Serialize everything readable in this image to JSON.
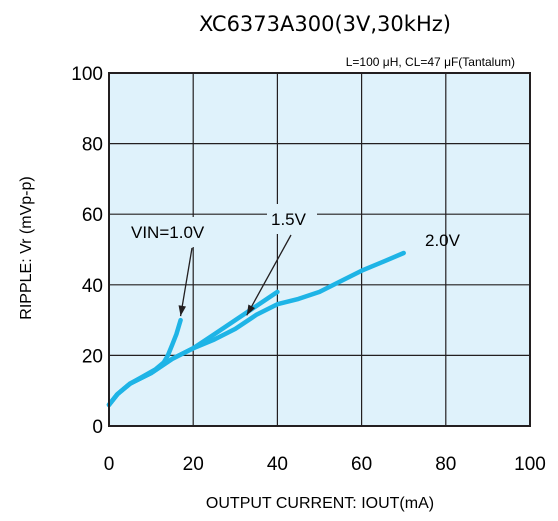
{
  "chart_data": {
    "type": "line",
    "title": "XC6373A300(3V,30kHz)",
    "conditions": "L=100 μH, CL=47 μF(Tantalum)",
    "xlabel": "OUTPUT CURRENT: IOUT(mA)",
    "ylabel": "RIPPLE: Vr (mVp-p)",
    "xlim": [
      0,
      100
    ],
    "ylim": [
      0,
      100
    ],
    "xticks": [
      "0",
      "20",
      "40",
      "60",
      "80",
      "100"
    ],
    "yticks": [
      "0",
      "20",
      "40",
      "60",
      "80",
      "100"
    ],
    "grid": true,
    "line_color": "#1eb4e6",
    "plot_background": "#dff2fb",
    "series": [
      {
        "name": "VIN=1.0V",
        "x": [
          0,
          2,
          5,
          8,
          11,
          13,
          14,
          15,
          16,
          17
        ],
        "y": [
          6,
          9,
          12,
          14,
          16,
          18,
          20,
          23,
          26,
          30
        ]
      },
      {
        "name": "1.5V",
        "x": [
          0,
          2,
          5,
          10,
          15,
          20,
          25,
          30,
          35,
          40
        ],
        "y": [
          6,
          9,
          12,
          15,
          19,
          22,
          26,
          30,
          34,
          38
        ]
      },
      {
        "name": "2.0V",
        "x": [
          0,
          2,
          5,
          10,
          15,
          20,
          25,
          30,
          35,
          40,
          45,
          50,
          55,
          60,
          65,
          70
        ],
        "y": [
          6,
          9,
          12,
          15,
          19,
          22,
          24.5,
          27.5,
          31.5,
          34.5,
          36,
          38,
          41,
          44,
          46.5,
          49
        ]
      }
    ]
  }
}
